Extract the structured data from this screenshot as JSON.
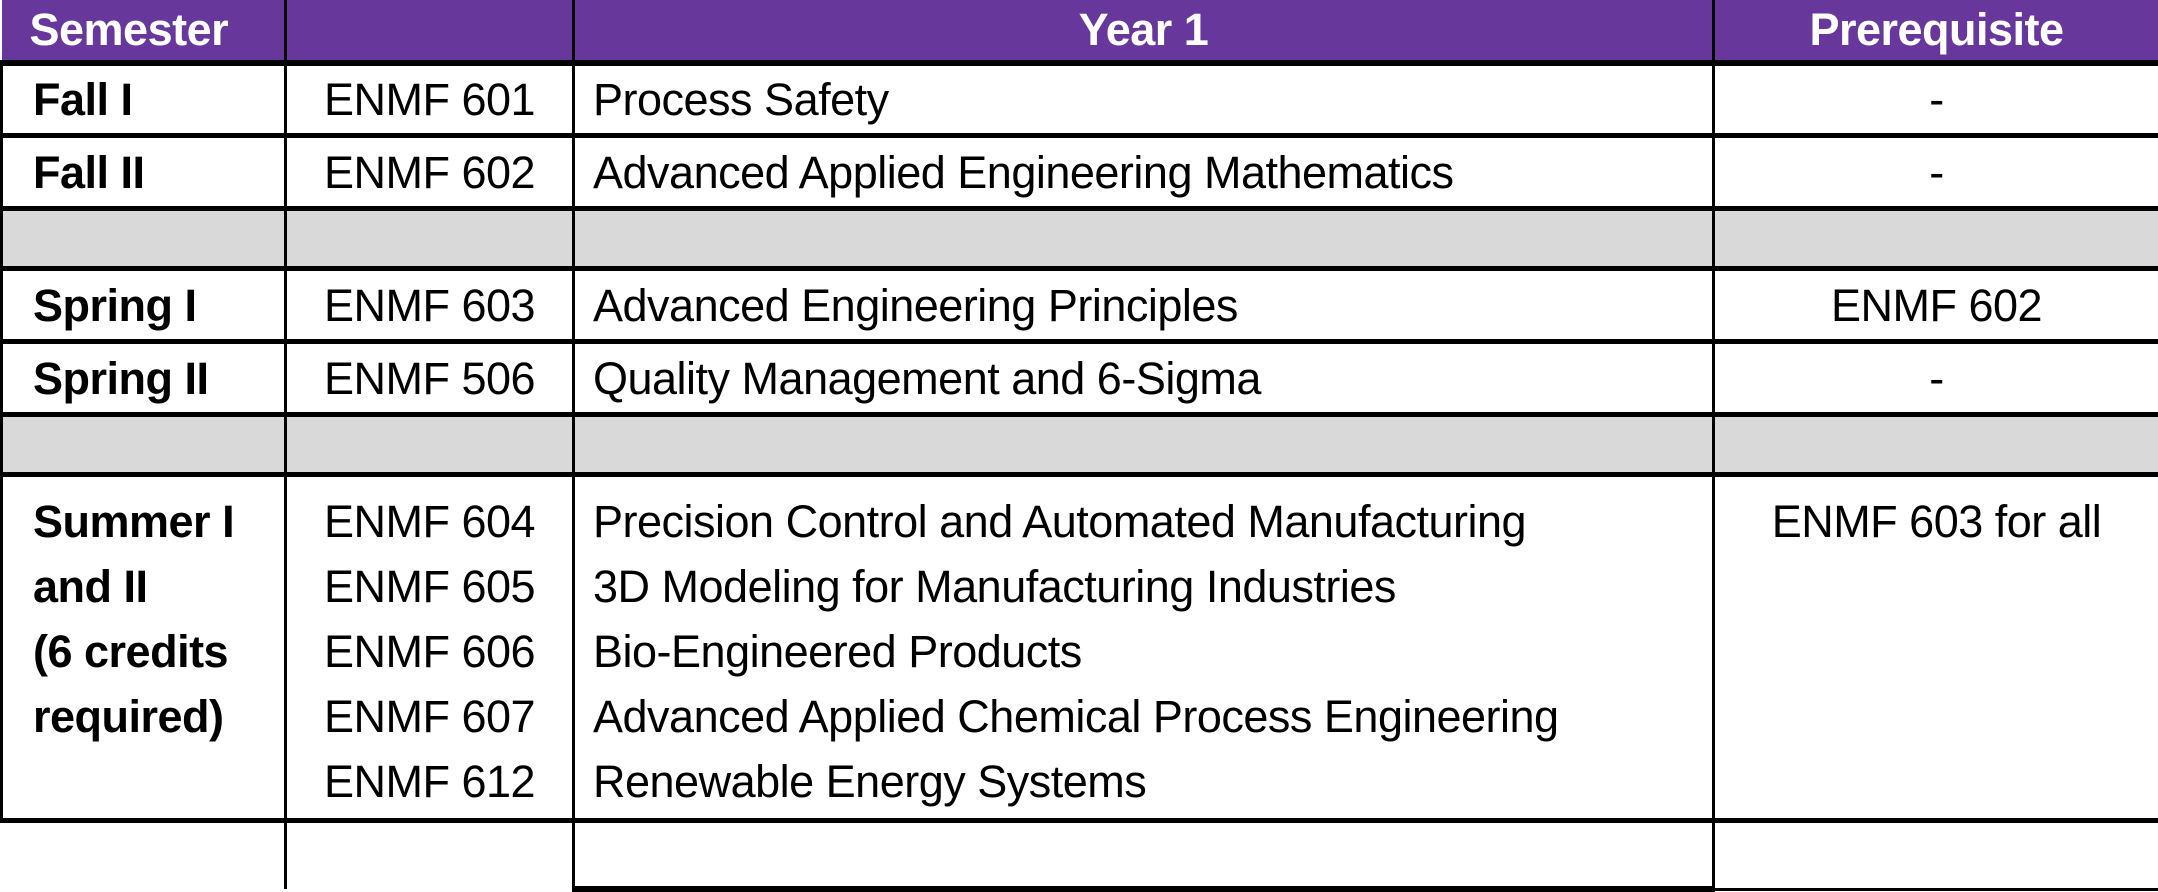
{
  "colors": {
    "header_bg": "#67379B",
    "header_text": "#FFFFFF",
    "spacer_bg": "#D9D9D9",
    "border": "#000000",
    "body_text": "#000000"
  },
  "header": {
    "semester": "Semester",
    "code": "",
    "year": "Year 1",
    "prerequisite": "Prerequisite"
  },
  "rows": [
    {
      "type": "course",
      "semester": [
        "Fall I"
      ],
      "codes": [
        "ENMF 601"
      ],
      "courses": [
        "Process Safety"
      ],
      "prerequisite": "-"
    },
    {
      "type": "course",
      "semester": [
        "Fall II"
      ],
      "codes": [
        "ENMF 602"
      ],
      "courses": [
        "Advanced Applied Engineering Mathematics"
      ],
      "prerequisite": "-"
    },
    {
      "type": "spacer"
    },
    {
      "type": "course",
      "semester": [
        "Spring I"
      ],
      "codes": [
        "ENMF 603"
      ],
      "courses": [
        "Advanced Engineering Principles"
      ],
      "prerequisite": "ENMF 602"
    },
    {
      "type": "course",
      "semester": [
        "Spring II"
      ],
      "codes": [
        "ENMF 506"
      ],
      "courses": [
        "Quality Management and 6-Sigma"
      ],
      "prerequisite": "-"
    },
    {
      "type": "spacer"
    },
    {
      "type": "course",
      "tall": true,
      "semester": [
        "Summer I",
        "and II",
        "(6 credits",
        "required)"
      ],
      "codes": [
        "ENMF 604",
        "ENMF 605",
        "ENMF 606",
        "ENMF 607",
        "ENMF 612"
      ],
      "courses": [
        "Precision Control and Automated Manufacturing",
        "3D Modeling for Manufacturing Industries",
        "Bio-Engineered Products",
        "Advanced Applied Chemical Process Engineering",
        "Renewable Energy Systems"
      ],
      "prerequisite": "ENMF 603 for all"
    },
    {
      "type": "empty"
    }
  ]
}
